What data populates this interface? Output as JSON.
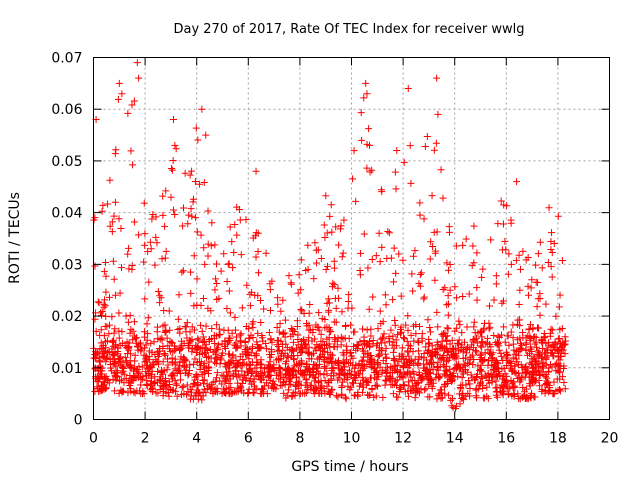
{
  "chart_data": {
    "type": "scatter",
    "title": "Day 270 of 2017, Rate Of TEC Index for receiver wwlg",
    "xlabel": "GPS time / hours",
    "ylabel": "ROTI / TECUs",
    "xlim": [
      0,
      20
    ],
    "ylim": [
      0,
      0.07
    ],
    "xticks": [
      0,
      2,
      4,
      6,
      8,
      10,
      12,
      14,
      16,
      18,
      20
    ],
    "yticks": [
      0,
      0.01,
      0.02,
      0.03,
      0.04,
      0.05,
      0.06,
      0.07
    ],
    "xtick_labels": [
      "0",
      "2",
      "4",
      "6",
      "8",
      "10",
      "12",
      "14",
      "16",
      "18",
      "20"
    ],
    "ytick_labels": [
      "0",
      "0.01",
      "0.02",
      "0.03",
      "0.04",
      "0.05",
      "0.06",
      "0.07"
    ],
    "grid": true,
    "marker": "+",
    "color": "#ff0000",
    "data_end_hours": 18.3,
    "series": [
      {
        "name": "ROTI",
        "note": "dense cloud of points; approximate upper envelope and notable peaks",
        "envelope": {
          "x": [
            0,
            0.5,
            1.0,
            1.5,
            2.0,
            2.5,
            3.0,
            3.5,
            4.0,
            4.5,
            5.0,
            5.5,
            6.0,
            6.5,
            7.0,
            7.5,
            8.0,
            8.5,
            9.0,
            9.5,
            10.0,
            10.5,
            11.0,
            11.5,
            12.0,
            12.5,
            13.0,
            13.5,
            14.0,
            14.5,
            15.0,
            15.5,
            16.0,
            16.5,
            17.0,
            17.5,
            18.0,
            18.3
          ],
          "y_high": [
            0.048,
            0.04,
            0.065,
            0.068,
            0.045,
            0.04,
            0.058,
            0.048,
            0.06,
            0.04,
            0.032,
            0.043,
            0.048,
            0.035,
            0.03,
            0.032,
            0.035,
            0.033,
            0.044,
            0.04,
            0.052,
            0.065,
            0.047,
            0.04,
            0.064,
            0.045,
            0.065,
            0.048,
            0.04,
            0.04,
            0.037,
            0.037,
            0.046,
            0.035,
            0.03,
            0.043,
            0.042,
            0.03
          ],
          "y_low": [
            0.005,
            0.006,
            0.005,
            0.005,
            0.005,
            0.005,
            0.004,
            0.005,
            0.003,
            0.005,
            0.005,
            0.005,
            0.005,
            0.005,
            0.005,
            0.004,
            0.005,
            0.005,
            0.005,
            0.004,
            0.004,
            0.005,
            0.004,
            0.004,
            0.004,
            0.004,
            0.004,
            0.004,
            0.002,
            0.004,
            0.004,
            0.004,
            0.005,
            0.004,
            0.004,
            0.005,
            0.005,
            0.006
          ]
        },
        "peaks": [
          {
            "x": 0.1,
            "y": 0.058
          },
          {
            "x": 1.0,
            "y": 0.065
          },
          {
            "x": 1.1,
            "y": 0.063
          },
          {
            "x": 1.7,
            "y": 0.069
          },
          {
            "x": 1.75,
            "y": 0.066
          },
          {
            "x": 3.1,
            "y": 0.058
          },
          {
            "x": 4.2,
            "y": 0.06
          },
          {
            "x": 4.35,
            "y": 0.055
          },
          {
            "x": 6.3,
            "y": 0.048
          },
          {
            "x": 10.1,
            "y": 0.052
          },
          {
            "x": 10.55,
            "y": 0.065
          },
          {
            "x": 10.6,
            "y": 0.063
          },
          {
            "x": 12.2,
            "y": 0.064
          },
          {
            "x": 13.3,
            "y": 0.066
          },
          {
            "x": 13.35,
            "y": 0.059
          },
          {
            "x": 16.4,
            "y": 0.046
          }
        ]
      }
    ]
  }
}
